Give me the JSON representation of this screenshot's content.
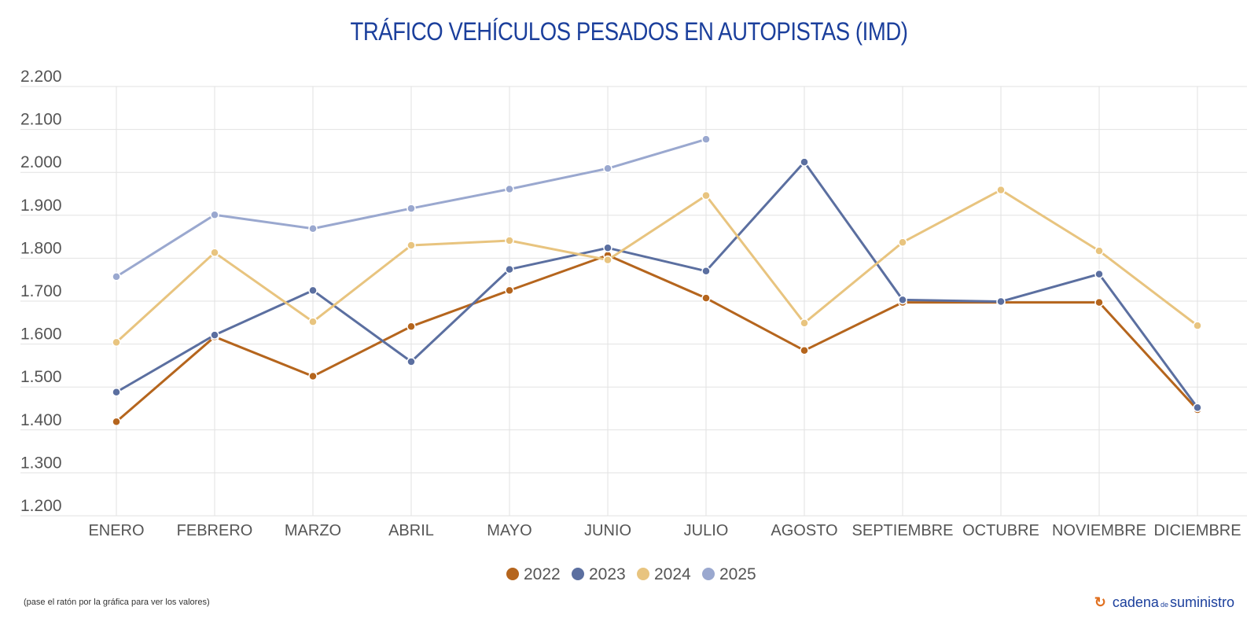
{
  "chart_data": {
    "type": "line",
    "title": "TRÁFICO VEHÍCULOS PESADOS EN AUTOPISTAS (IMD)",
    "xlabel": "",
    "ylabel": "",
    "categories": [
      "ENERO",
      "FEBRERO",
      "MARZO",
      "ABRIL",
      "MAYO",
      "JUNIO",
      "JULIO",
      "AGOSTO",
      "SEPTIEMBRE",
      "OCTUBRE",
      "NOVIEMBRE",
      "DICIEMBRE"
    ],
    "ylim": [
      1200,
      2200
    ],
    "yticks": [
      1200,
      1300,
      1400,
      1500,
      1600,
      1700,
      1800,
      1900,
      2000,
      2100,
      2200
    ],
    "ytick_labels": [
      "1.200",
      "1.300",
      "1.400",
      "1.500",
      "1.600",
      "1.700",
      "1.800",
      "1.900",
      "2.000",
      "2.100",
      "2.200"
    ],
    "grid": true,
    "legend_position": "bottom",
    "series": [
      {
        "name": "2022",
        "color": "#b5651d",
        "values": [
          1419,
          1617,
          1525,
          1641,
          1725,
          1807,
          1707,
          1585,
          1697,
          1697,
          1697,
          1447
        ]
      },
      {
        "name": "2023",
        "color": "#5b6fa0",
        "values": [
          1488,
          1621,
          1725,
          1559,
          1774,
          1824,
          1770,
          2024,
          1703,
          1699,
          1763,
          1452
        ]
      },
      {
        "name": "2024",
        "color": "#e8c47f",
        "values": [
          1604,
          1813,
          1652,
          1830,
          1841,
          1796,
          1946,
          1649,
          1837,
          1959,
          1817,
          1643
        ]
      },
      {
        "name": "2025",
        "color": "#9aa8cf",
        "values": [
          1757,
          1901,
          1869,
          1916,
          1961,
          2009,
          2077,
          null,
          null,
          null,
          null,
          null
        ]
      }
    ]
  },
  "footer": {
    "note": "(pase el ratón por la gráfica para ver los valores)",
    "logo_main": "cadena",
    "logo_small": "de",
    "logo_end": "suministro"
  }
}
